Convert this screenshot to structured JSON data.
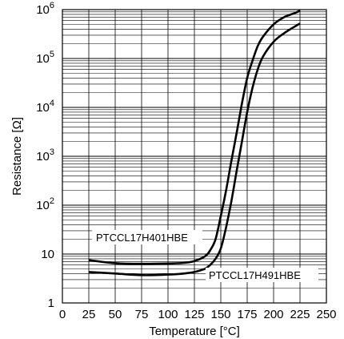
{
  "chart_data": {
    "type": "line",
    "title": "",
    "xlabel": "Temperature [°C]",
    "ylabel": "Resistance [Ω]",
    "xlim": [
      0,
      250
    ],
    "ylim": [
      1,
      1000000
    ],
    "yscale": "log",
    "grid": true,
    "x_ticks": [
      {
        "value": 0,
        "label": "0"
      },
      {
        "value": 25,
        "label": "25"
      },
      {
        "value": 50,
        "label": "50"
      },
      {
        "value": 75,
        "label": "75"
      },
      {
        "value": 100,
        "label": "100"
      },
      {
        "value": 125,
        "label": "125"
      },
      {
        "value": 150,
        "label": "150"
      },
      {
        "value": 175,
        "label": "175"
      },
      {
        "value": 200,
        "label": "200"
      },
      {
        "value": 225,
        "label": "225"
      },
      {
        "value": 250,
        "label": "250"
      }
    ],
    "y_ticks": [
      {
        "value": 1,
        "base": "1",
        "exp": ""
      },
      {
        "value": 10,
        "base": "10",
        "exp": ""
      },
      {
        "value": 100,
        "base": "10",
        "exp": "2"
      },
      {
        "value": 1000,
        "base": "10",
        "exp": "3"
      },
      {
        "value": 10000,
        "base": "10",
        "exp": "4"
      },
      {
        "value": 100000,
        "base": "10",
        "exp": "5"
      },
      {
        "value": 1000000,
        "base": "10",
        "exp": "6"
      }
    ],
    "series": [
      {
        "name": "PTCCL17H401HBE",
        "x": [
          25,
          50,
          75,
          100,
          115,
          125,
          135,
          140,
          145,
          150,
          155,
          160,
          165,
          170,
          175,
          180,
          185,
          190,
          200,
          210,
          220,
          225
        ],
        "y": [
          7.5,
          6.5,
          6.3,
          6.4,
          6.6,
          7.2,
          9,
          12,
          20,
          60,
          200,
          800,
          3000,
          12000,
          40000,
          90000,
          180000,
          280000,
          500000,
          700000,
          850000,
          950000
        ]
      },
      {
        "name": "PTCCL17H491HBE",
        "x": [
          25,
          50,
          75,
          100,
          115,
          125,
          135,
          140,
          145,
          150,
          155,
          160,
          165,
          170,
          175,
          180,
          185,
          190,
          200,
          210,
          220,
          225
        ],
        "y": [
          4.3,
          4.0,
          3.7,
          3.8,
          4.0,
          4.3,
          5.0,
          6.0,
          8.0,
          13,
          35,
          120,
          500,
          2000,
          8000,
          25000,
          60000,
          110000,
          220000,
          330000,
          450000,
          520000
        ]
      }
    ]
  }
}
